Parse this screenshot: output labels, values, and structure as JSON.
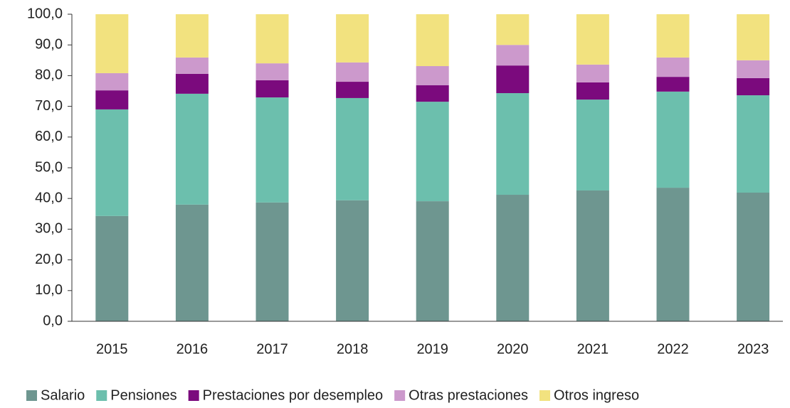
{
  "chart_data": {
    "type": "stacked_bar",
    "categories": [
      "2015",
      "2016",
      "2017",
      "2018",
      "2019",
      "2020",
      "2021",
      "2022",
      "2023"
    ],
    "series": [
      {
        "name": "Salario",
        "color": "#6e9690",
        "values": [
          34.3,
          38.0,
          38.7,
          39.4,
          39.1,
          41.2,
          42.6,
          43.5,
          41.9
        ]
      },
      {
        "name": "Pensiones",
        "color": "#6cbfad",
        "values": [
          34.7,
          36.1,
          34.2,
          33.3,
          32.4,
          33.1,
          29.6,
          31.3,
          31.7
        ]
      },
      {
        "name": "Prestaciones por desempleo",
        "color": "#7b0a7d",
        "values": [
          6.2,
          6.5,
          5.6,
          5.3,
          5.4,
          9.0,
          5.6,
          4.8,
          5.6
        ]
      },
      {
        "name": "Otras prestaciones",
        "color": "#cc99cc",
        "values": [
          5.6,
          5.3,
          5.5,
          6.3,
          6.2,
          6.7,
          5.8,
          6.3,
          5.8
        ]
      },
      {
        "name": "Otros ingreso",
        "color": "#f2e27f",
        "values": [
          19.2,
          14.1,
          16.0,
          15.7,
          16.9,
          10.0,
          16.4,
          14.1,
          15.0
        ]
      }
    ],
    "ylim": [
      0,
      100
    ],
    "yticks": [
      {
        "value": 0,
        "label": "0,0"
      },
      {
        "value": 10,
        "label": "10,0"
      },
      {
        "value": 20,
        "label": "20,0"
      },
      {
        "value": 30,
        "label": "30,0"
      },
      {
        "value": 40,
        "label": "40,0"
      },
      {
        "value": 50,
        "label": "50,0"
      },
      {
        "value": 60,
        "label": "60,0"
      },
      {
        "value": 70,
        "label": "70,0"
      },
      {
        "value": 80,
        "label": "80,0"
      },
      {
        "value": 90,
        "label": "90,0"
      },
      {
        "value": 100,
        "label": "100,0"
      }
    ],
    "grid": false,
    "legend": "bottom"
  }
}
